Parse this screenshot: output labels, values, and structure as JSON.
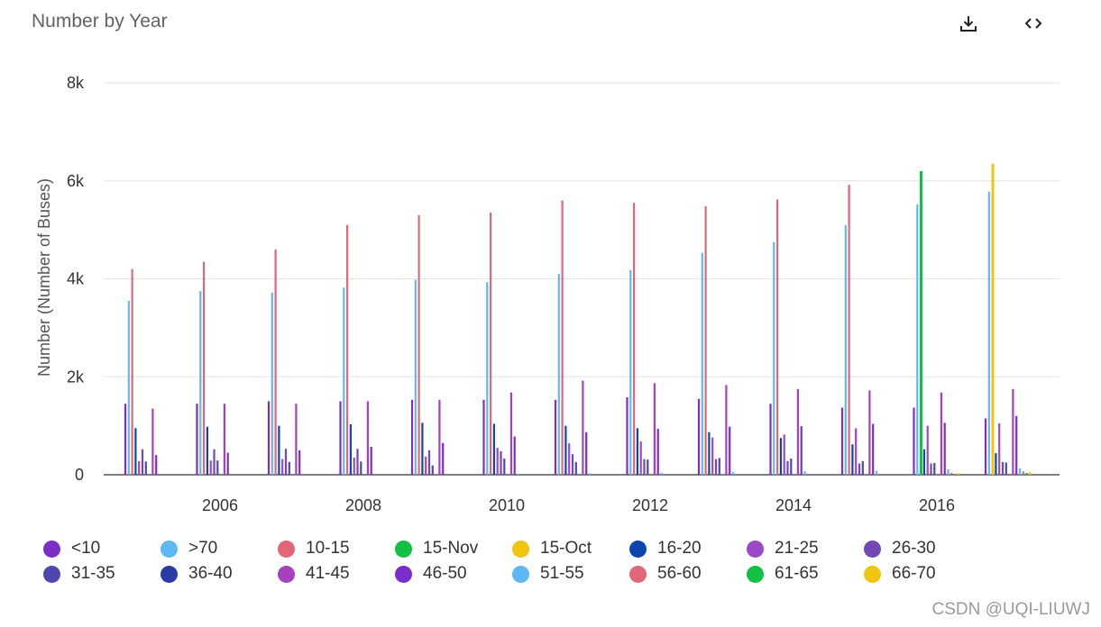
{
  "title": "Number by Year",
  "toolbar": {
    "download_icon": "download-icon",
    "embed_icon": "code-icon"
  },
  "watermark": "CSDN @UQI-LIUWJ",
  "chart_data": {
    "type": "bar",
    "title": "Number by Year",
    "xlabel": "",
    "ylabel": "Number (Number of Buses)",
    "ylim": [
      0,
      8000
    ],
    "y_ticks": [
      "0",
      "2k",
      "4k",
      "6k",
      "8k"
    ],
    "x_ticks": [
      "2006",
      "2008",
      "2010",
      "2012",
      "2014",
      "2016"
    ],
    "grid": true,
    "legend_position": "bottom",
    "categories": [
      "2005",
      "2006",
      "2007",
      "2008",
      "2009",
      "2010",
      "2011",
      "2012",
      "2013",
      "2014",
      "2015",
      "2016",
      "2017"
    ],
    "series": [
      {
        "name": "<10",
        "color": "#7b2fc6",
        "values": [
          1450,
          1450,
          1500,
          1500,
          1530,
          1530,
          1530,
          1580,
          1550,
          1450,
          1370,
          1370,
          1150
        ]
      },
      {
        "name": ">70",
        "color": "#5eb8f2",
        "values": [
          3550,
          3750,
          3720,
          3820,
          3980,
          3930,
          4100,
          4180,
          4530,
          4750,
          5100,
          5520,
          5780
        ]
      },
      {
        "name": "10-15",
        "color": "#e06678",
        "values": [
          4200,
          4350,
          4600,
          5100,
          5300,
          5350,
          5600,
          5550,
          5480,
          5620,
          5920,
          null,
          null
        ]
      },
      {
        "name": "15-Nov",
        "color": "#12c143",
        "values": [
          null,
          null,
          null,
          null,
          null,
          null,
          null,
          null,
          null,
          null,
          null,
          6200,
          null
        ]
      },
      {
        "name": "15-Oct",
        "color": "#f1c40f",
        "values": [
          null,
          null,
          null,
          null,
          null,
          null,
          null,
          null,
          null,
          null,
          null,
          null,
          6350
        ]
      },
      {
        "name": "16-20",
        "color": "#0b46b0",
        "values": [
          950,
          980,
          1000,
          1030,
          1060,
          1040,
          1000,
          950,
          870,
          750,
          620,
          520,
          440
        ]
      },
      {
        "name": "21-25",
        "color": "#9b49c6",
        "values": [
          280,
          290,
          320,
          350,
          370,
          550,
          640,
          680,
          760,
          820,
          950,
          1000,
          1050
        ]
      },
      {
        "name": "26-30",
        "color": "#7248b3",
        "values": [
          520,
          520,
          530,
          530,
          500,
          480,
          420,
          320,
          320,
          280,
          230,
          230,
          260
        ]
      },
      {
        "name": "31-35",
        "color": "#4f47b0",
        "values": [
          270,
          290,
          260,
          270,
          190,
          330,
          260,
          310,
          340,
          330,
          280,
          240,
          250
        ]
      },
      {
        "name": "36-40",
        "color": "#2a3ba6",
        "values": [
          0,
          0,
          0,
          0,
          0,
          0,
          0,
          0,
          0,
          0,
          0,
          0,
          0
        ]
      },
      {
        "name": "41-45",
        "color": "#a640bd",
        "values": [
          1350,
          1450,
          1450,
          1500,
          1530,
          1680,
          1920,
          1870,
          1830,
          1750,
          1720,
          1680,
          1750
        ]
      },
      {
        "name": "46-50",
        "color": "#7a2ecb",
        "values": [
          400,
          450,
          500,
          570,
          650,
          780,
          870,
          940,
          980,
          990,
          1040,
          1060,
          1200
        ]
      },
      {
        "name": "51-55",
        "color": "#5eb8f2",
        "values": [
          0,
          0,
          0,
          0,
          0,
          20,
          30,
          40,
          60,
          70,
          80,
          110,
          130
        ]
      },
      {
        "name": "56-60",
        "color": "#e06678",
        "values": [
          0,
          0,
          0,
          0,
          0,
          0,
          0,
          0,
          0,
          0,
          0,
          40,
          70
        ]
      },
      {
        "name": "61-65",
        "color": "#12c143",
        "values": [
          0,
          0,
          0,
          0,
          0,
          0,
          0,
          0,
          0,
          0,
          0,
          0,
          40
        ]
      },
      {
        "name": "66-70",
        "color": "#f1c40f",
        "values": [
          0,
          0,
          0,
          0,
          0,
          0,
          0,
          0,
          0,
          0,
          0,
          30,
          60
        ]
      }
    ]
  }
}
